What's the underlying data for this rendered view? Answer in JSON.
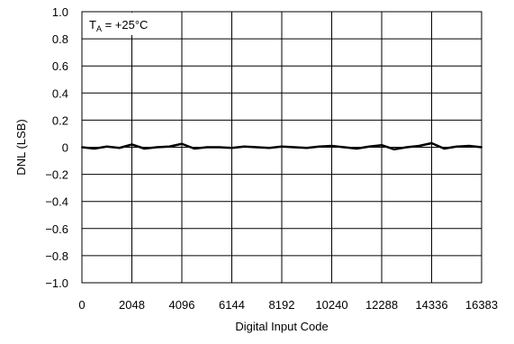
{
  "chart_data": {
    "type": "line",
    "title": "",
    "annotation": {
      "symbol": "T",
      "subscript": "A",
      "text": " = +25°C"
    },
    "xlabel": "Digital Input Code",
    "ylabel": "DNL (LSB)",
    "xlim": [
      0,
      16383
    ],
    "ylim": [
      -1.0,
      1.0
    ],
    "x_ticks": [
      0,
      2048,
      4096,
      6144,
      8192,
      10240,
      12288,
      14336,
      16383
    ],
    "x_tick_labels": [
      "0",
      "2048",
      "4096",
      "6144",
      "8192",
      "10240",
      "12288",
      "14336",
      "16383"
    ],
    "y_ticks": [
      1.0,
      0.8,
      0.6,
      0.4,
      0.2,
      0,
      -0.2,
      -0.4,
      -0.6,
      -0.8,
      -1.0
    ],
    "y_tick_labels": [
      "1.0",
      "0.8",
      "0.6",
      "0.4",
      "0.2",
      "0",
      "−0.2",
      "−0.4",
      "−0.6",
      "−0.8",
      "−1.0"
    ],
    "grid": true,
    "series": [
      {
        "color": "#000000",
        "x": [
          0,
          512,
          1024,
          1536,
          2048,
          2560,
          3072,
          3584,
          4096,
          4608,
          5120,
          5632,
          6144,
          6656,
          7168,
          7680,
          8192,
          8704,
          9216,
          9728,
          10240,
          10752,
          11264,
          11776,
          12288,
          12800,
          13312,
          13824,
          14336,
          14848,
          15360,
          15872,
          16383
        ],
        "values": [
          0.0,
          -0.01,
          0.005,
          -0.005,
          0.02,
          -0.01,
          0.0,
          0.005,
          0.025,
          -0.01,
          0.0,
          0.0,
          -0.005,
          0.005,
          0.0,
          -0.005,
          0.005,
          0.0,
          -0.005,
          0.005,
          0.01,
          0.0,
          -0.01,
          0.005,
          0.015,
          -0.015,
          0.0,
          0.01,
          0.03,
          -0.01,
          0.005,
          0.01,
          0.0
        ]
      }
    ]
  }
}
